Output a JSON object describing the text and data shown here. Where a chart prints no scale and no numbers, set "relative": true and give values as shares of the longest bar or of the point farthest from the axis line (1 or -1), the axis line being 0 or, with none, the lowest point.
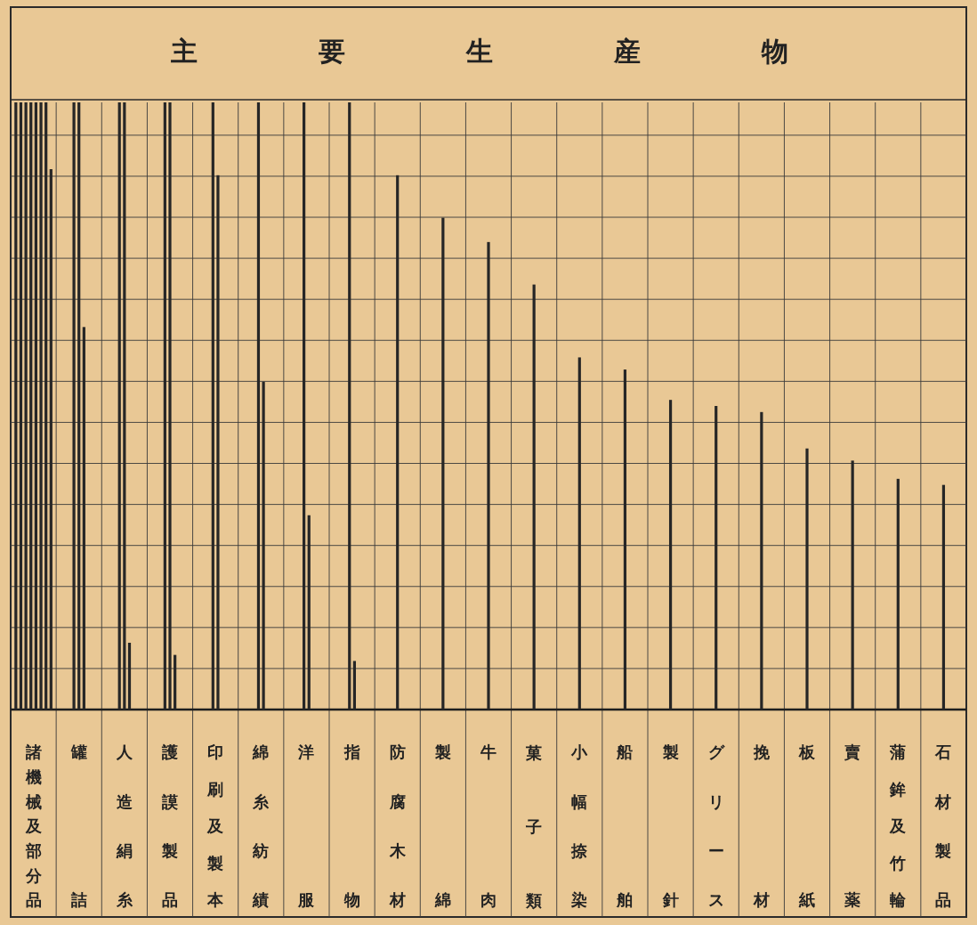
{
  "chart_data": {
    "type": "bar",
    "title": "主要生産物",
    "relative": true,
    "grid": true,
    "categories": [
      "諸機械及部分品",
      "罐詰",
      "人造絹糸",
      "護謨製品",
      "印刷及製本",
      "綿糸紡績",
      "洋服",
      "指物",
      "防腐木材",
      "製綿",
      "牛肉",
      "菓子類",
      "小幅捺染",
      "船舶",
      "製針",
      "グリース",
      "挽材",
      "板紙",
      "賣薬",
      "蒲鉾及竹輪",
      "石材製品"
    ],
    "series": [
      {
        "color": "#262626",
        "values": [
          1,
          1,
          1,
          1,
          1,
          1,
          1,
          1,
          0.88,
          0.81,
          0.77,
          0.7,
          0.58,
          0.56,
          0.51,
          0.5,
          0.49,
          0.43,
          0.41,
          0.38,
          0.37
        ]
      },
      {
        "color": "#262626",
        "values": [
          1,
          1,
          1,
          1,
          0.88,
          0.54,
          0.32,
          0.08,
          null,
          null,
          null,
          null,
          null,
          null,
          null,
          null,
          null,
          null,
          null,
          null,
          null
        ]
      },
      {
        "color": "#262626",
        "values": [
          1,
          0.63,
          0.11,
          0.09,
          null,
          null,
          null,
          null,
          null,
          null,
          null,
          null,
          null,
          null,
          null,
          null,
          null,
          null,
          null,
          null,
          null
        ]
      },
      {
        "color": "#262626",
        "values": [
          1,
          null,
          null,
          null,
          null,
          null,
          null,
          null,
          null,
          null,
          null,
          null,
          null,
          null,
          null,
          null,
          null,
          null,
          null,
          null,
          null
        ]
      },
      {
        "color": "#262626",
        "values": [
          1,
          null,
          null,
          null,
          null,
          null,
          null,
          null,
          null,
          null,
          null,
          null,
          null,
          null,
          null,
          null,
          null,
          null,
          null,
          null,
          null
        ]
      },
      {
        "color": "#262626",
        "values": [
          1,
          null,
          null,
          null,
          null,
          null,
          null,
          null,
          null,
          null,
          null,
          null,
          null,
          null,
          null,
          null,
          null,
          null,
          null,
          null,
          null
        ]
      },
      {
        "color": "#262626",
        "values": [
          1,
          null,
          null,
          null,
          null,
          null,
          null,
          null,
          null,
          null,
          null,
          null,
          null,
          null,
          null,
          null,
          null,
          null,
          null,
          null,
          null
        ]
      },
      {
        "color": "#262626",
        "values": [
          0.89,
          null,
          null,
          null,
          null,
          null,
          null,
          null,
          null,
          null,
          null,
          null,
          null,
          null,
          null,
          null,
          null,
          null,
          null,
          null,
          null
        ]
      }
    ]
  }
}
